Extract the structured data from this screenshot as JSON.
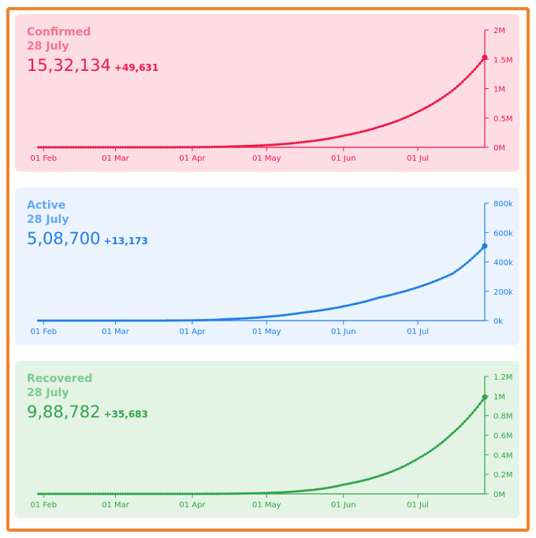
{
  "colors": {
    "frame": "#f0842c",
    "confirmed": {
      "bg": "#fddde3",
      "fg": "#f0174b",
      "title": "#f4738f",
      "date": "#f4738f"
    },
    "active": {
      "bg": "#ebf4fe",
      "fg": "#1e7ce8",
      "title": "#64a8ef",
      "date": "#64a8ef"
    },
    "recovered": {
      "bg": "#e4f4e4",
      "fg": "#2ea44a",
      "title": "#7cc98a",
      "date": "#7cc98a"
    }
  },
  "chart_data": [
    {
      "type": "line",
      "title": "Confirmed",
      "date_label": "28 July",
      "total": "15,32,134",
      "delta": "+49,631",
      "x": [
        "2020-01-30",
        "2020-02-01",
        "2020-02-15",
        "2020-03-01",
        "2020-03-15",
        "2020-04-01",
        "2020-04-15",
        "2020-05-01",
        "2020-05-15",
        "2020-06-01",
        "2020-06-15",
        "2020-07-01",
        "2020-07-15",
        "2020-07-28"
      ],
      "y": [
        1,
        3,
        3,
        3,
        110,
        2000,
        12500,
        37000,
        86000,
        199000,
        343000,
        605000,
        969000,
        1532134
      ],
      "x_tick_labels": [
        "01 Feb",
        "01 Mar",
        "01 Apr",
        "01 May",
        "01 Jun",
        "01 Jul"
      ],
      "y_tick_labels": [
        "0M",
        "0.5M",
        "1M",
        "1.5M",
        "2M"
      ],
      "y_tick_values": [
        0,
        500000,
        1000000,
        1500000,
        2000000
      ],
      "ylim": [
        0,
        2000000
      ],
      "axis_side": "right",
      "grid": false
    },
    {
      "type": "line",
      "title": "Active",
      "date_label": "28 July",
      "total": "5,08,700",
      "delta": "+13,173",
      "x": [
        "2020-01-30",
        "2020-02-01",
        "2020-02-15",
        "2020-03-01",
        "2020-03-15",
        "2020-04-01",
        "2020-04-15",
        "2020-05-01",
        "2020-05-15",
        "2020-06-01",
        "2020-06-15",
        "2020-07-01",
        "2020-07-15",
        "2020-07-28"
      ],
      "y": [
        1,
        3,
        0,
        0,
        95,
        1800,
        10000,
        26000,
        53000,
        97000,
        155000,
        227000,
        320000,
        508700
      ],
      "x_tick_labels": [
        "01 Feb",
        "01 Mar",
        "01 Apr",
        "01 May",
        "01 Jun",
        "01 Jul"
      ],
      "y_tick_labels": [
        "0k",
        "200k",
        "400k",
        "600k",
        "800k"
      ],
      "y_tick_values": [
        0,
        200000,
        400000,
        600000,
        800000
      ],
      "ylim": [
        0,
        800000
      ],
      "axis_side": "right",
      "grid": false
    },
    {
      "type": "line",
      "title": "Recovered",
      "date_label": "28 July",
      "total": "9,88,782",
      "delta": "+35,683",
      "x": [
        "2020-01-30",
        "2020-02-01",
        "2020-02-15",
        "2020-03-01",
        "2020-03-15",
        "2020-04-01",
        "2020-04-15",
        "2020-05-01",
        "2020-05-15",
        "2020-06-01",
        "2020-06-15",
        "2020-07-01",
        "2020-07-15",
        "2020-07-28"
      ],
      "y": [
        0,
        0,
        3,
        3,
        13,
        150,
        2000,
        10000,
        30000,
        95000,
        180000,
        360000,
        620000,
        988782
      ],
      "x_tick_labels": [
        "01 Feb",
        "01 Mar",
        "01 Apr",
        "01 May",
        "01 Jun",
        "01 Jul"
      ],
      "y_tick_labels": [
        "0M",
        "0.2M",
        "0.4M",
        "0.6M",
        "0.8M",
        "1M",
        "1.2M"
      ],
      "y_tick_values": [
        0,
        200000,
        400000,
        600000,
        800000,
        1000000,
        1200000
      ],
      "ylim": [
        0,
        1200000
      ],
      "axis_side": "right",
      "grid": false
    }
  ]
}
